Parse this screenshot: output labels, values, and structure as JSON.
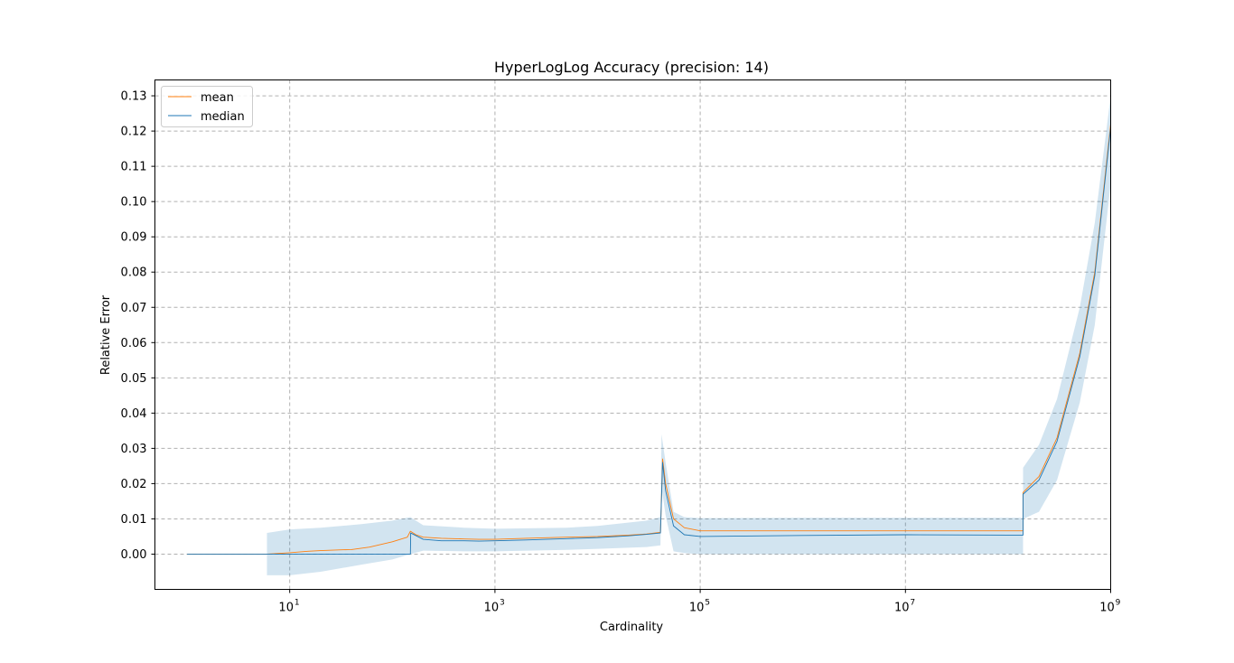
{
  "chart_data": {
    "type": "line",
    "title": "HyperLogLog Accuracy (precision: 14)",
    "xlabel": "Cardinality",
    "ylabel": "Relative Error",
    "xscale": "log",
    "xlim": [
      0.486,
      1000000000
    ],
    "ylim": [
      -0.01,
      0.1345
    ],
    "grid": true,
    "legend_position": "upper left",
    "x_ticks": [
      {
        "value": 10,
        "base": "10",
        "exp": "1"
      },
      {
        "value": 1000,
        "base": "10",
        "exp": "3"
      },
      {
        "value": 100000,
        "base": "10",
        "exp": "5"
      },
      {
        "value": 10000000,
        "base": "10",
        "exp": "7"
      },
      {
        "value": 1000000000,
        "base": "10",
        "exp": "9"
      }
    ],
    "y_ticks": [
      {
        "value": 0.0,
        "label": "0.00"
      },
      {
        "value": 0.01,
        "label": "0.01"
      },
      {
        "value": 0.02,
        "label": "0.02"
      },
      {
        "value": 0.03,
        "label": "0.03"
      },
      {
        "value": 0.04,
        "label": "0.04"
      },
      {
        "value": 0.05,
        "label": "0.05"
      },
      {
        "value": 0.06,
        "label": "0.06"
      },
      {
        "value": 0.07,
        "label": "0.07"
      },
      {
        "value": 0.08,
        "label": "0.08"
      },
      {
        "value": 0.09,
        "label": "0.09"
      },
      {
        "value": 0.1,
        "label": "0.10"
      },
      {
        "value": 0.11,
        "label": "0.11"
      },
      {
        "value": 0.12,
        "label": "0.12"
      },
      {
        "value": 0.13,
        "label": "0.13"
      }
    ],
    "series": [
      {
        "name": "mean",
        "color": "#ff7f0e",
        "x": [
          1,
          2,
          4,
          6,
          10,
          15,
          20,
          30,
          40,
          60,
          100,
          140,
          150,
          170,
          200,
          300,
          500,
          700,
          1000,
          2000,
          5000,
          10000,
          20000,
          30000,
          41000,
          43000,
          46000,
          55000,
          70000,
          100000,
          1000000,
          10000000,
          100000000,
          140000000,
          140000001,
          200000000,
          300000000,
          500000000,
          700000000,
          1000000000
        ],
        "y": [
          0.0,
          0.0,
          0.0,
          0.0,
          0.0004,
          0.0008,
          0.001,
          0.0012,
          0.0013,
          0.002,
          0.0035,
          0.0048,
          0.0065,
          0.0055,
          0.0048,
          0.0045,
          0.0043,
          0.0042,
          0.0042,
          0.0045,
          0.0048,
          0.005,
          0.0054,
          0.0057,
          0.0062,
          0.027,
          0.02,
          0.01,
          0.0075,
          0.0066,
          0.0066,
          0.0066,
          0.0066,
          0.0066,
          0.0175,
          0.022,
          0.033,
          0.057,
          0.08,
          0.122
        ]
      },
      {
        "name": "median",
        "color": "#1f77b4",
        "x": [
          1,
          6,
          10,
          20,
          50,
          100,
          150,
          151,
          200,
          300,
          500,
          700,
          1000,
          2000,
          5000,
          10000,
          20000,
          30000,
          41000,
          43000,
          46000,
          55000,
          70000,
          100000,
          1000000,
          10000000,
          100000000,
          140000000,
          140000001,
          200000000,
          300000000,
          500000000,
          700000000,
          1000000000
        ],
        "y": [
          0.0,
          0.0,
          0.0,
          0.0,
          0.0,
          0.0,
          0.0,
          0.006,
          0.0042,
          0.0038,
          0.0038,
          0.0037,
          0.0038,
          0.004,
          0.0044,
          0.0047,
          0.0052,
          0.0056,
          0.006,
          0.026,
          0.018,
          0.008,
          0.0055,
          0.005,
          0.0053,
          0.0055,
          0.0054,
          0.0054,
          0.017,
          0.021,
          0.032,
          0.056,
          0.079,
          0.121
        ]
      }
    ],
    "band": {
      "color": "#1f77b4",
      "x": [
        6,
        10,
        20,
        50,
        100,
        150,
        200,
        500,
        1000,
        5000,
        10000,
        30000,
        41000,
        42000,
        46000,
        55000,
        70000,
        100000,
        1000000,
        10000000,
        100000000,
        140000000,
        140000001,
        200000000,
        300000000,
        500000000,
        700000000,
        1000000000
      ],
      "upper": [
        0.006,
        0.007,
        0.0075,
        0.0085,
        0.0095,
        0.0105,
        0.0082,
        0.0075,
        0.0072,
        0.0075,
        0.008,
        0.0095,
        0.0105,
        0.034,
        0.026,
        0.012,
        0.0105,
        0.0102,
        0.0103,
        0.0103,
        0.0103,
        0.0103,
        0.0245,
        0.031,
        0.044,
        0.07,
        0.094,
        0.13
      ],
      "lower": [
        -0.006,
        -0.006,
        -0.005,
        -0.003,
        -0.0015,
        0.0,
        0.001,
        0.0008,
        0.0008,
        0.0012,
        0.0015,
        0.002,
        0.0025,
        0.019,
        0.011,
        0.0008,
        0.0003,
        0.0,
        0.0,
        0.0,
        0.0,
        0.0,
        0.01,
        0.012,
        0.021,
        0.043,
        0.065,
        0.105
      ]
    }
  }
}
